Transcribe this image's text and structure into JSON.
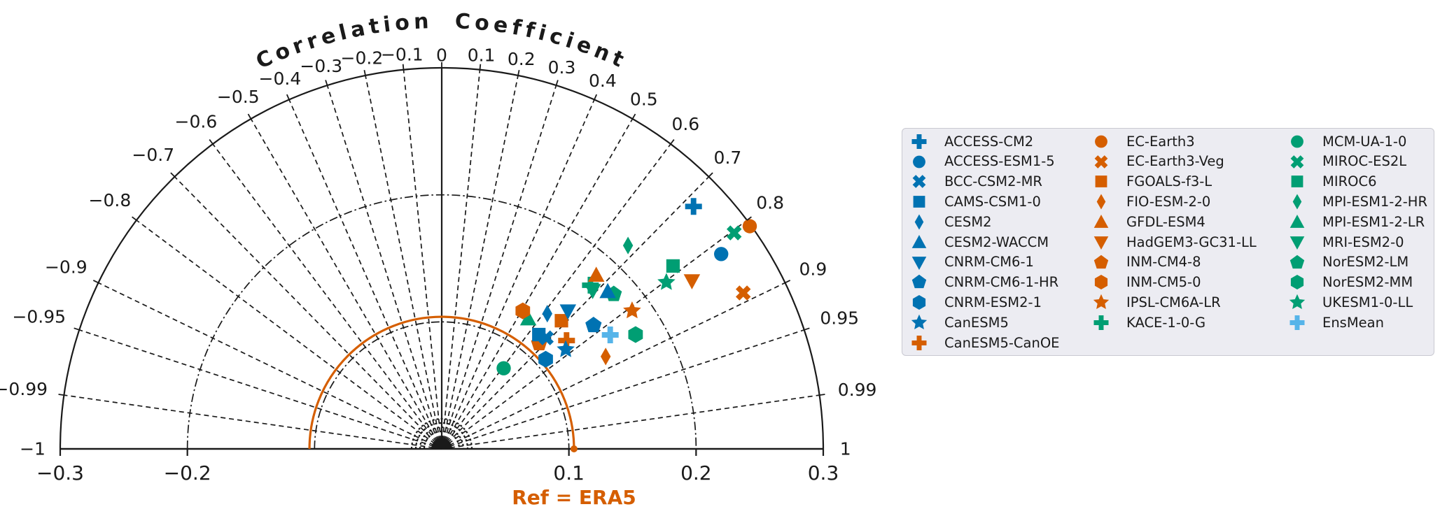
{
  "palette": {
    "blue": "#0072B2",
    "vermillion": "#D55E00",
    "green": "#009E73",
    "skyblue": "#56B4E9",
    "grid": "#1a1a1a",
    "ref": "#D55E00",
    "legend_bg": "#ececf2",
    "legend_border": "#c9c9d1"
  },
  "chart_data": {
    "type": "scatter",
    "variant": "taylor-diagram",
    "title": "Correlation Coefficient",
    "reference_label": "Ref = ERA5",
    "reference": {
      "name": "ERA5",
      "std": 0.104
    },
    "axes": {
      "std_max": 0.3,
      "std_tick_values": [
        -0.3,
        -0.2,
        0.1,
        0.2,
        0.3
      ],
      "std_tick_labels": [
        "−0.3",
        "−0.2",
        "0.1",
        "0.2",
        "0.3"
      ],
      "std_grid_arcs": [
        0.1,
        0.2
      ],
      "corr_tick_values": [
        -1,
        -0.99,
        -0.95,
        -0.9,
        -0.8,
        -0.7,
        -0.6,
        -0.5,
        -0.4,
        -0.3,
        -0.2,
        -0.1,
        0,
        0.1,
        0.2,
        0.3,
        0.4,
        0.5,
        0.6,
        0.7,
        0.8,
        0.9,
        0.95,
        0.99,
        1
      ],
      "corr_tick_labels": [
        "−1",
        "−0.99",
        "−0.95",
        "−0.9",
        "−0.8",
        "−0.7",
        "−0.6",
        "−0.5",
        "−0.4",
        "−0.3",
        "−0.2",
        "−0.1",
        "0",
        "0.1",
        "0.2",
        "0.3",
        "0.4",
        "0.5",
        "0.6",
        "0.7",
        "0.8",
        "0.9",
        "0.95",
        "0.99",
        "1"
      ],
      "corr_ray_values": [
        -0.99,
        -0.95,
        -0.9,
        -0.8,
        -0.7,
        -0.6,
        -0.5,
        -0.4,
        -0.3,
        -0.2,
        -0.1,
        0.1,
        0.2,
        0.3,
        0.4,
        0.5,
        0.6,
        0.7,
        0.8,
        0.9,
        0.95,
        0.99
      ]
    },
    "series": [
      {
        "name": "ACCESS-CM2",
        "marker": "plus",
        "color": "blue",
        "corr": 0.72,
        "std": 0.275
      },
      {
        "name": "ACCESS-ESM1-5",
        "marker": "circle",
        "color": "blue",
        "corr": 0.82,
        "std": 0.268
      },
      {
        "name": "BCC-CSM2-MR",
        "marker": "x",
        "color": "blue",
        "corr": 0.685,
        "std": 0.12
      },
      {
        "name": "CAMS-CSM1-0",
        "marker": "square",
        "color": "blue",
        "corr": 0.647,
        "std": 0.118
      },
      {
        "name": "CESM2",
        "marker": "diamond",
        "color": "blue",
        "corr": 0.615,
        "std": 0.135
      },
      {
        "name": "CESM2-WACCM",
        "marker": "triangle-up",
        "color": "blue",
        "corr": 0.725,
        "std": 0.18
      },
      {
        "name": "CNRM-CM6-1",
        "marker": "triangle-down",
        "color": "blue",
        "corr": 0.675,
        "std": 0.147
      },
      {
        "name": "CNRM-CM6-1-HR",
        "marker": "pentagon",
        "color": "blue",
        "corr": 0.775,
        "std": 0.154
      },
      {
        "name": "CNRM-ESM2-1",
        "marker": "hexagon",
        "color": "blue",
        "corr": 0.757,
        "std": 0.108
      },
      {
        "name": "CanESM5",
        "marker": "star",
        "color": "blue",
        "corr": 0.78,
        "std": 0.125
      },
      {
        "name": "CanESM5-CanOE",
        "marker": "plus",
        "color": "vermillion",
        "corr": 0.755,
        "std": 0.13
      },
      {
        "name": "EC-Earth3",
        "marker": "circle",
        "color": "vermillion",
        "corr": 0.81,
        "std": 0.299
      },
      {
        "name": "EC-Earth3-Veg",
        "marker": "x",
        "color": "vermillion",
        "corr": 0.888,
        "std": 0.267
      },
      {
        "name": "FGOALS-f3-L",
        "marker": "square",
        "color": "vermillion",
        "corr": 0.682,
        "std": 0.138
      },
      {
        "name": "FIO-ESM-2-0",
        "marker": "diamond",
        "color": "vermillion",
        "corr": 0.871,
        "std": 0.148
      },
      {
        "name": "GFDL-ESM4",
        "marker": "triangle-up",
        "color": "vermillion",
        "corr": 0.664,
        "std": 0.183
      },
      {
        "name": "HadGEM3-GC31-LL",
        "marker": "triangle-down",
        "color": "vermillion",
        "corr": 0.83,
        "std": 0.237
      },
      {
        "name": "INM-CM4-8",
        "marker": "pentagon",
        "color": "vermillion",
        "corr": 0.678,
        "std": 0.113
      },
      {
        "name": "INM-CM5-0",
        "marker": "hexagon",
        "color": "vermillion",
        "corr": 0.506,
        "std": 0.126
      },
      {
        "name": "IPSL-CM6A-LR",
        "marker": "star",
        "color": "vermillion",
        "corr": 0.809,
        "std": 0.185
      },
      {
        "name": "KACE-1-0-G",
        "marker": "plus",
        "color": "green",
        "corr": 0.672,
        "std": 0.174
      },
      {
        "name": "MCM-UA-1-0",
        "marker": "circle",
        "color": "green",
        "corr": 0.609,
        "std": 0.08
      },
      {
        "name": "MIROC-ES2L",
        "marker": "x",
        "color": "green",
        "corr": 0.804,
        "std": 0.286
      },
      {
        "name": "MIROC6",
        "marker": "square",
        "color": "green",
        "corr": 0.784,
        "std": 0.232
      },
      {
        "name": "MPI-ESM1-2-HR",
        "marker": "diamond",
        "color": "green",
        "corr": 0.675,
        "std": 0.217
      },
      {
        "name": "MPI-ESM1-2-LR",
        "marker": "triangle-up",
        "color": "green",
        "corr": 0.553,
        "std": 0.123
      },
      {
        "name": "MRI-ESM2-0",
        "marker": "triangle-down",
        "color": "green",
        "corr": 0.69,
        "std": 0.172
      },
      {
        "name": "NorESM2-LM",
        "marker": "pentagon",
        "color": "green",
        "corr": 0.743,
        "std": 0.182
      },
      {
        "name": "NorESM2-MM",
        "marker": "hexagon",
        "color": "green",
        "corr": 0.861,
        "std": 0.177
      },
      {
        "name": "UKESM1-0-LL",
        "marker": "star",
        "color": "green",
        "corr": 0.803,
        "std": 0.22
      },
      {
        "name": "EnsMean",
        "marker": "plus",
        "color": "skyblue",
        "corr": 0.828,
        "std": 0.16
      }
    ]
  },
  "legend": {
    "column_counts": [
      11,
      10,
      10
    ]
  }
}
